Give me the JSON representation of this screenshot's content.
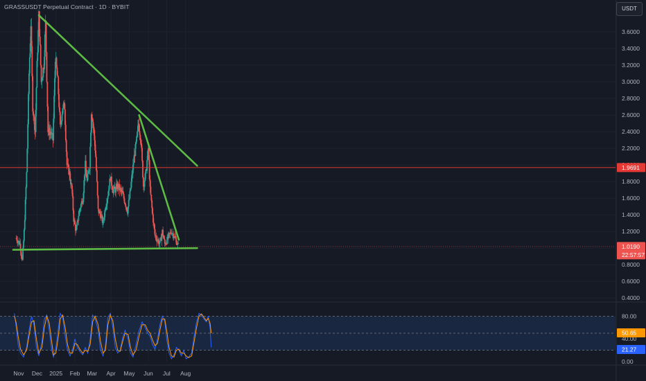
{
  "header": {
    "symbol_title": "GRASSUSDT Perpetual Contract · 1D · BYBIT"
  },
  "toolbar": {
    "currency_label": "USDT"
  },
  "colors": {
    "background": "#161a25",
    "grid": "#1f2330",
    "up": "#26a69a",
    "down": "#ef5350",
    "trendline": "#5dba45",
    "hline": "#e53935",
    "stoch_k": "#2962ff",
    "stoch_d": "#ff9800",
    "stoch_band": "#1b2a47",
    "axis_text": "#b2b5be"
  },
  "chart_data": [
    {
      "type": "candlestick",
      "title": "GRASSUSDT Perpetual Contract · 1D · BYBIT",
      "x_tick_labels": [
        "Nov",
        "Dec",
        "2025",
        "Feb",
        "Mar",
        "Apr",
        "May",
        "Jun",
        "Jul",
        "Aug"
      ],
      "y_tick_labels": [
        "0.4000",
        "0.6000",
        "0.8000",
        "1.0000",
        "1.2000",
        "1.4000",
        "1.6000",
        "1.8000",
        "2.0000",
        "2.2000",
        "2.4000",
        "2.6000",
        "2.8000",
        "3.0000",
        "3.2000",
        "3.4000",
        "3.6000"
      ],
      "ylim": [
        0.36,
        3.8
      ],
      "price_points": [
        [
          "2024-10-28",
          1.12
        ],
        [
          "2024-11-03",
          1.05
        ],
        [
          "2024-11-07",
          0.85
        ],
        [
          "2024-11-10",
          1.2
        ],
        [
          "2024-11-14",
          1.9
        ],
        [
          "2024-11-18",
          3.1
        ],
        [
          "2024-11-21",
          3.7
        ],
        [
          "2024-11-24",
          2.7
        ],
        [
          "2024-11-28",
          2.4
        ],
        [
          "2024-12-01",
          3.2
        ],
        [
          "2024-12-04",
          3.8
        ],
        [
          "2024-12-08",
          3.0
        ],
        [
          "2024-12-12",
          3.2
        ],
        [
          "2024-12-15",
          3.7
        ],
        [
          "2024-12-19",
          2.4
        ],
        [
          "2024-12-23",
          2.4
        ],
        [
          "2024-12-27",
          2.3
        ],
        [
          "2024-12-31",
          3.3
        ],
        [
          "2025-01-04",
          3.0
        ],
        [
          "2025-01-08",
          2.45
        ],
        [
          "2025-01-12",
          2.7
        ],
        [
          "2025-01-15",
          2.7
        ],
        [
          "2025-01-19",
          2.0
        ],
        [
          "2025-01-23",
          1.9
        ],
        [
          "2025-01-27",
          1.7
        ],
        [
          "2025-01-30",
          1.35
        ],
        [
          "2025-02-03",
          1.2
        ],
        [
          "2025-02-07",
          1.4
        ],
        [
          "2025-02-10",
          1.5
        ],
        [
          "2025-02-14",
          1.6
        ],
        [
          "2025-02-18",
          2.0
        ],
        [
          "2025-02-21",
          1.8
        ],
        [
          "2025-02-25",
          2.0
        ],
        [
          "2025-02-28",
          2.65
        ],
        [
          "2025-03-04",
          2.4
        ],
        [
          "2025-03-07",
          2.1
        ],
        [
          "2025-03-11",
          1.45
        ],
        [
          "2025-03-15",
          1.4
        ],
        [
          "2025-03-19",
          1.3
        ],
        [
          "2025-03-23",
          1.5
        ],
        [
          "2025-03-27",
          1.65
        ],
        [
          "2025-03-31",
          1.85
        ],
        [
          "2025-04-04",
          1.7
        ],
        [
          "2025-04-08",
          1.7
        ],
        [
          "2025-04-12",
          1.75
        ],
        [
          "2025-04-16",
          1.7
        ],
        [
          "2025-04-20",
          1.65
        ],
        [
          "2025-04-24",
          1.55
        ],
        [
          "2025-04-28",
          1.45
        ],
        [
          "2025-05-02",
          1.65
        ],
        [
          "2025-05-05",
          1.85
        ],
        [
          "2025-05-09",
          2.1
        ],
        [
          "2025-05-13",
          2.3
        ],
        [
          "2025-05-16",
          2.5
        ],
        [
          "2025-05-20",
          2.3
        ],
        [
          "2025-05-24",
          1.75
        ],
        [
          "2025-05-28",
          1.9
        ],
        [
          "2025-06-01",
          2.2
        ],
        [
          "2025-06-04",
          1.7
        ],
        [
          "2025-06-08",
          1.4
        ],
        [
          "2025-06-12",
          1.15
        ],
        [
          "2025-06-16",
          1.1
        ],
        [
          "2025-06-20",
          1.05
        ],
        [
          "2025-06-24",
          1.2
        ],
        [
          "2025-06-28",
          1.05
        ],
        [
          "2025-07-02",
          1.1
        ],
        [
          "2025-07-05",
          1.15
        ],
        [
          "2025-07-09",
          1.2
        ],
        [
          "2025-07-13",
          1.15
        ],
        [
          "2025-07-17",
          1.08
        ],
        [
          "2025-07-20",
          1.02
        ]
      ],
      "trendlines": [
        {
          "from": [
            "2024-12-04",
            3.8
          ],
          "to": [
            "2025-08-20",
            1.99
          ]
        },
        {
          "from": [
            "2025-05-17",
            2.6
          ],
          "to": [
            "2025-07-21",
            1.1
          ]
        },
        {
          "from": [
            "2024-10-23",
            0.98
          ],
          "to": [
            "2025-08-20",
            1.0
          ]
        }
      ],
      "horizontal_line": 1.9691,
      "price_labels": {
        "level_line": "1.9691",
        "last_price": "1.0190",
        "countdown": "22:57:57"
      }
    },
    {
      "type": "line",
      "title": "",
      "y_tick_labels": [
        "0.00",
        "40.00",
        "80.00"
      ],
      "ylim": [
        0,
        100
      ],
      "bands": [
        20,
        50,
        80
      ],
      "value_labels": {
        "k": "50.65",
        "d": "21.27"
      },
      "series": [
        {
          "values": [
            [
              -68,
              85
            ],
            [
              -65,
              60
            ],
            [
              -62,
              30
            ],
            [
              -58,
              15
            ],
            [
              -53,
              8
            ],
            [
              -48,
              25
            ],
            [
              -44,
              55
            ],
            [
              -40,
              80
            ],
            [
              -36,
              65
            ],
            [
              -32,
              25
            ],
            [
              -28,
              10
            ],
            [
              -23,
              35
            ],
            [
              -19,
              75
            ],
            [
              -15,
              82
            ],
            [
              -11,
              55
            ],
            [
              -7,
              20
            ],
            [
              -4,
              8
            ],
            [
              0,
              25
            ],
            [
              4,
              60
            ],
            [
              7,
              85
            ],
            [
              11,
              78
            ],
            [
              15,
              45
            ],
            [
              19,
              20
            ],
            [
              23,
              10
            ],
            [
              27,
              20
            ],
            [
              31,
              40
            ],
            [
              35,
              25
            ],
            [
              39,
              18
            ],
            [
              44,
              12
            ],
            [
              48,
              25
            ],
            [
              52,
              15
            ],
            [
              56,
              40
            ],
            [
              60,
              82
            ],
            [
              64,
              75
            ],
            [
              69,
              55
            ],
            [
              73,
              20
            ],
            [
              77,
              10
            ],
            [
              81,
              30
            ],
            [
              85,
              78
            ],
            [
              89,
              85
            ],
            [
              93,
              60
            ],
            [
              97,
              25
            ],
            [
              101,
              15
            ],
            [
              105,
              20
            ],
            [
              109,
              42
            ],
            [
              113,
              55
            ],
            [
              118,
              40
            ],
            [
              122,
              15
            ],
            [
              126,
              8
            ],
            [
              131,
              30
            ],
            [
              136,
              55
            ],
            [
              141,
              70
            ],
            [
              146,
              60
            ],
            [
              150,
              50
            ],
            [
              154,
              45
            ],
            [
              158,
              30
            ],
            [
              162,
              22
            ],
            [
              166,
              40
            ],
            [
              170,
              65
            ],
            [
              174,
              80
            ],
            [
              178,
              70
            ],
            [
              181,
              40
            ],
            [
              185,
              15
            ],
            [
              189,
              5
            ],
            [
              193,
              12
            ],
            [
              197,
              25
            ],
            [
              201,
              20
            ],
            [
              205,
              10
            ],
            [
              209,
              20
            ],
            [
              213,
              5
            ],
            [
              217,
              8
            ],
            [
              222,
              15
            ],
            [
              226,
              45
            ],
            [
              230,
              70
            ],
            [
              234,
              85
            ],
            [
              238,
              82
            ],
            [
              242,
              75
            ],
            [
              246,
              70
            ],
            [
              249,
              80
            ],
            [
              252,
              60
            ],
            [
              254,
              25
            ]
          ]
        },
        {
          "values": [
            [
              -68,
              80
            ],
            [
              -65,
              68
            ],
            [
              -62,
              45
            ],
            [
              -58,
              22
            ],
            [
              -53,
              12
            ],
            [
              -48,
              20
            ],
            [
              -44,
              45
            ],
            [
              -40,
              70
            ],
            [
              -36,
              72
            ],
            [
              -32,
              40
            ],
            [
              -28,
              15
            ],
            [
              -23,
              25
            ],
            [
              -19,
              60
            ],
            [
              -15,
              80
            ],
            [
              -11,
              68
            ],
            [
              -7,
              35
            ],
            [
              -4,
              12
            ],
            [
              0,
              15
            ],
            [
              4,
              45
            ],
            [
              7,
              75
            ],
            [
              11,
              82
            ],
            [
              15,
              60
            ],
            [
              19,
              30
            ],
            [
              23,
              15
            ],
            [
              27,
              15
            ],
            [
              31,
              32
            ],
            [
              35,
              30
            ],
            [
              39,
              22
            ],
            [
              44,
              15
            ],
            [
              48,
              20
            ],
            [
              52,
              18
            ],
            [
              56,
              30
            ],
            [
              60,
              70
            ],
            [
              64,
              80
            ],
            [
              69,
              65
            ],
            [
              73,
              35
            ],
            [
              77,
              15
            ],
            [
              81,
              20
            ],
            [
              85,
              65
            ],
            [
              89,
              82
            ],
            [
              93,
              72
            ],
            [
              97,
              40
            ],
            [
              101,
              20
            ],
            [
              105,
              18
            ],
            [
              109,
              35
            ],
            [
              113,
              50
            ],
            [
              118,
              48
            ],
            [
              122,
              25
            ],
            [
              126,
              12
            ],
            [
              131,
              20
            ],
            [
              136,
              45
            ],
            [
              141,
              65
            ],
            [
              146,
              65
            ],
            [
              150,
              55
            ],
            [
              154,
              50
            ],
            [
              158,
              38
            ],
            [
              162,
              28
            ],
            [
              166,
              32
            ],
            [
              170,
              55
            ],
            [
              174,
              75
            ],
            [
              178,
              75
            ],
            [
              181,
              55
            ],
            [
              185,
              25
            ],
            [
              189,
              10
            ],
            [
              193,
              8
            ],
            [
              197,
              20
            ],
            [
              201,
              22
            ],
            [
              205,
              15
            ],
            [
              209,
              15
            ],
            [
              213,
              10
            ],
            [
              217,
              7
            ],
            [
              222,
              10
            ],
            [
              226,
              35
            ],
            [
              230,
              60
            ],
            [
              234,
              80
            ],
            [
              238,
              84
            ],
            [
              242,
              78
            ],
            [
              246,
              72
            ],
            [
              249,
              76
            ],
            [
              252,
              68
            ],
            [
              254,
              50
            ]
          ]
        }
      ]
    }
  ]
}
